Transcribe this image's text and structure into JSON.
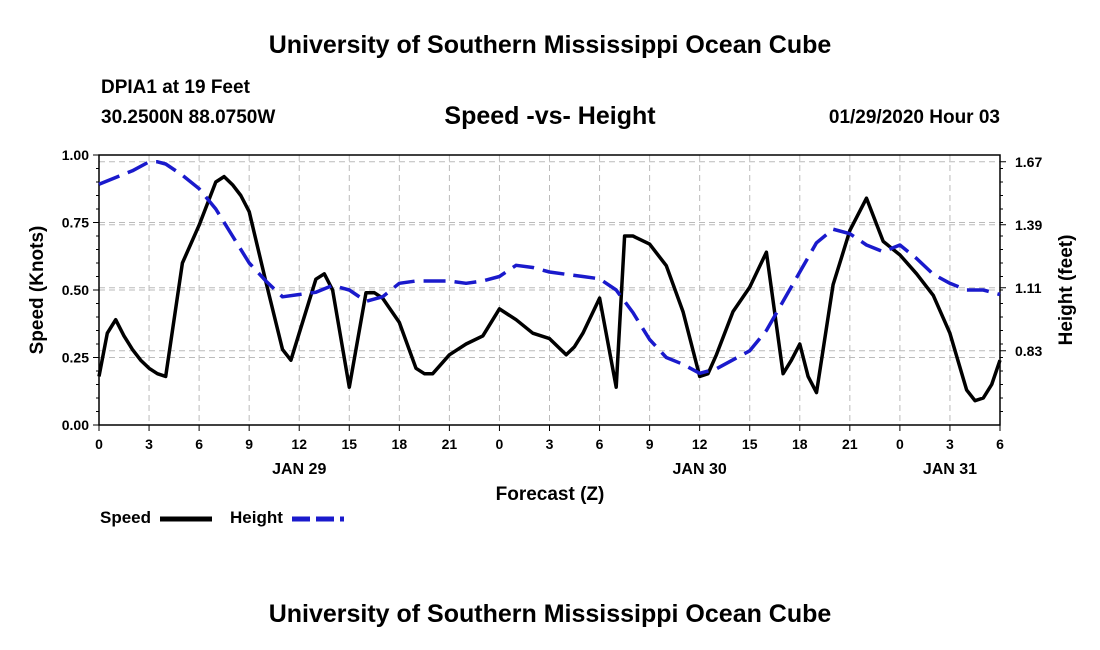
{
  "header": {
    "title": "University of Southern Mississippi Ocean Cube",
    "station": "DPIA1 at 19 Feet",
    "coords": "30.2500N 88.0750W",
    "chart_title": "Speed -vs- Height",
    "datetime": "01/29/2020 Hour 03"
  },
  "footer": {
    "title": "University of Southern Mississippi Ocean Cube"
  },
  "legend": {
    "speed_label": "Speed",
    "height_label": "Height"
  },
  "colors": {
    "speed": "#000000",
    "height": "#1a1acc",
    "grid": "#bbbbbb"
  },
  "chart_data": {
    "type": "line",
    "title": "Speed -vs- Height",
    "xlabel": "Forecast (Z)",
    "ylabel": "Speed (Knots)",
    "y2label": "Height (feet)",
    "xlim": [
      0,
      54
    ],
    "ylim": [
      0,
      1
    ],
    "y2lim": [
      0.5,
      1.7
    ],
    "x_ticks": [
      0,
      3,
      6,
      9,
      12,
      15,
      18,
      21,
      24,
      27,
      30,
      33,
      36,
      39,
      42,
      45,
      48,
      51,
      54
    ],
    "x_tick_labels": [
      "0",
      "3",
      "6",
      "9",
      "12",
      "15",
      "18",
      "21",
      "0",
      "3",
      "6",
      "9",
      "12",
      "15",
      "18",
      "21",
      "0",
      "3",
      "6"
    ],
    "day_labels": [
      {
        "x": 12,
        "label": "JAN 29"
      },
      {
        "x": 36,
        "label": "JAN 30"
      },
      {
        "x": 51,
        "label": "JAN 31"
      }
    ],
    "y_ticks": [
      0,
      0.25,
      0.5,
      0.75,
      1.0
    ],
    "y_tick_labels": [
      "0.00",
      "0.25",
      "0.50",
      "0.75",
      "1.00"
    ],
    "y2_ticks": [
      0.83,
      1.11,
      1.39,
      1.67
    ],
    "y2_tick_labels": [
      "0.83",
      "1.11",
      "1.39",
      "1.67"
    ],
    "series": [
      {
        "name": "Speed",
        "axis": "left",
        "style": "solid",
        "x": [
          0,
          0.5,
          1,
          1.5,
          2,
          2.5,
          3,
          3.5,
          4,
          5,
          6,
          7,
          7.5,
          8,
          8.5,
          9,
          10,
          11,
          11.5,
          12,
          13,
          13.5,
          14,
          15,
          16,
          16.5,
          17,
          18,
          19,
          19.5,
          20,
          21,
          22,
          23,
          24,
          25,
          26,
          27,
          28,
          28.5,
          29,
          30,
          31,
          31.5,
          32,
          33,
          34,
          35,
          36,
          36.5,
          37,
          38,
          39,
          40,
          41,
          41.5,
          42,
          42.5,
          43,
          44,
          44.5,
          45,
          46,
          47,
          48,
          49,
          50,
          51,
          52,
          52.5,
          53,
          53.5,
          54
        ],
        "y": [
          0.18,
          0.34,
          0.39,
          0.33,
          0.28,
          0.24,
          0.21,
          0.19,
          0.18,
          0.6,
          0.74,
          0.9,
          0.92,
          0.89,
          0.85,
          0.79,
          0.53,
          0.28,
          0.24,
          0.34,
          0.54,
          0.56,
          0.5,
          0.14,
          0.49,
          0.49,
          0.47,
          0.38,
          0.21,
          0.19,
          0.19,
          0.26,
          0.3,
          0.33,
          0.43,
          0.39,
          0.34,
          0.32,
          0.26,
          0.29,
          0.34,
          0.47,
          0.14,
          0.7,
          0.7,
          0.67,
          0.59,
          0.42,
          0.18,
          0.19,
          0.26,
          0.42,
          0.51,
          0.64,
          0.19,
          0.24,
          0.3,
          0.18,
          0.12,
          0.52,
          0.62,
          0.72,
          0.84,
          0.68,
          0.63,
          0.56,
          0.48,
          0.34,
          0.13,
          0.09,
          0.1,
          0.15,
          0.24
        ]
      },
      {
        "name": "Height",
        "axis": "right",
        "style": "dashed",
        "x": [
          0,
          1,
          2,
          3,
          3.5,
          4,
          5,
          6,
          7,
          8,
          9,
          10,
          11,
          12,
          13,
          14,
          15,
          16,
          17,
          18,
          19,
          20,
          21,
          22,
          23,
          24,
          25,
          26,
          27,
          28,
          29,
          30,
          31,
          32,
          33,
          34,
          35,
          36,
          37,
          38,
          39,
          40,
          41,
          42,
          43,
          44,
          45,
          46,
          47,
          48,
          49,
          50,
          51,
          52,
          53,
          54
        ],
        "y": [
          1.57,
          1.6,
          1.63,
          1.67,
          1.67,
          1.66,
          1.61,
          1.55,
          1.46,
          1.34,
          1.22,
          1.14,
          1.07,
          1.08,
          1.09,
          1.12,
          1.1,
          1.05,
          1.07,
          1.13,
          1.14,
          1.14,
          1.14,
          1.13,
          1.14,
          1.16,
          1.21,
          1.2,
          1.18,
          1.17,
          1.16,
          1.15,
          1.1,
          1.0,
          0.88,
          0.8,
          0.77,
          0.73,
          0.75,
          0.79,
          0.83,
          0.92,
          1.05,
          1.18,
          1.31,
          1.37,
          1.35,
          1.3,
          1.27,
          1.3,
          1.24,
          1.17,
          1.13,
          1.1,
          1.1,
          1.08
        ]
      }
    ]
  }
}
